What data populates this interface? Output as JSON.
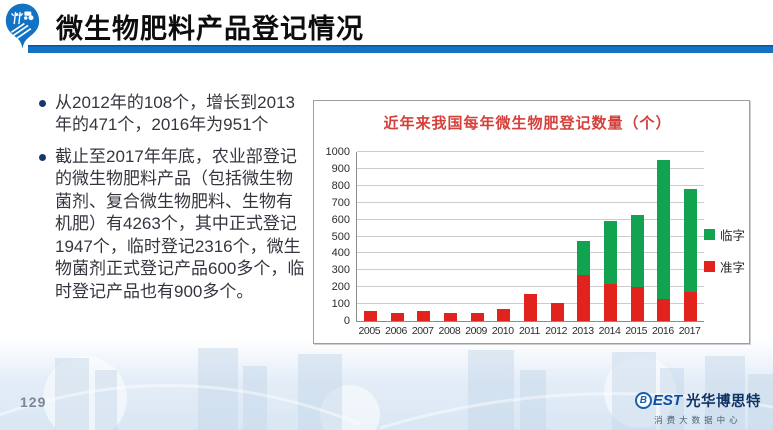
{
  "header": {
    "title": "微生物肥料产品登记情况",
    "accent_color": "#1273c4"
  },
  "bullets": [
    "从2012年的108个，增长到2013年的471个，2016年为951个",
    "截止至2017年年底，农业部登记的微生物肥料产品（包括微生物菌剂、复合微生物肥料、生物有机肥）有4263个，其中正式登记1947个，临时登记2316个，微生物菌剂正式登记产品600多个，临时登记产品也有900多个。"
  ],
  "chart_data": {
    "type": "bar",
    "stacked": true,
    "title": "近年来我国每年微生物肥登记数量（个）",
    "title_color": "#d6403a",
    "categories": [
      "2005",
      "2006",
      "2007",
      "2008",
      "2009",
      "2010",
      "2011",
      "2012",
      "2013",
      "2014",
      "2015",
      "2016",
      "2017"
    ],
    "series": [
      {
        "name": "准字",
        "color": "#e2231d",
        "values": [
          60,
          45,
          60,
          50,
          50,
          70,
          160,
          108,
          270,
          220,
          200,
          131,
          170
        ]
      },
      {
        "name": "临字",
        "color": "#12a350",
        "values": [
          0,
          0,
          0,
          0,
          0,
          0,
          0,
          0,
          201,
          370,
          430,
          820,
          610
        ]
      }
    ],
    "xlabel": "",
    "ylabel": "",
    "ylim": [
      0,
      1000
    ],
    "y_ticks": [
      0,
      100,
      200,
      300,
      400,
      500,
      600,
      700,
      800,
      900,
      1000
    ],
    "grid": true,
    "legend_position": "right"
  },
  "footer": {
    "page_number": "129",
    "logo": {
      "badge": "B",
      "brand": "EST",
      "name": "光华博思特",
      "subtitle": "消费大数据中心"
    }
  }
}
